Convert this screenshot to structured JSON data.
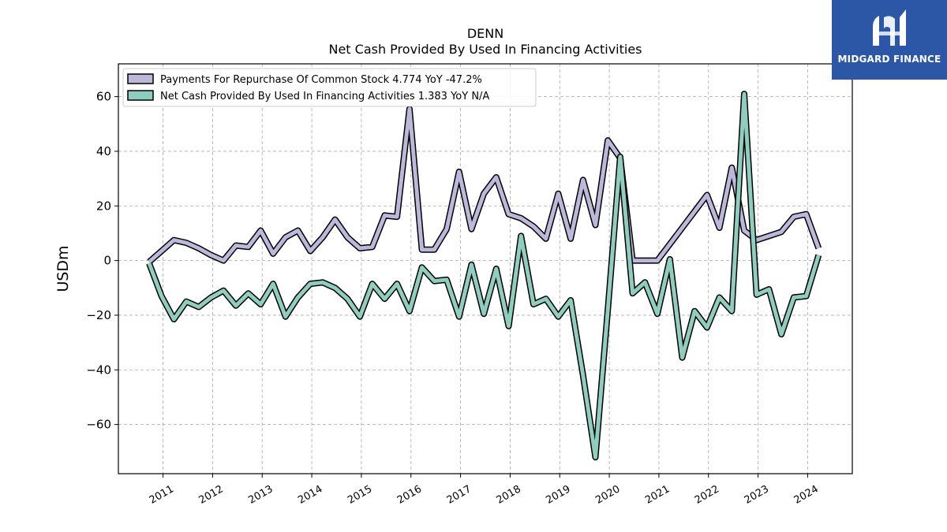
{
  "chart_data": {
    "type": "line",
    "title": "DENN",
    "subtitle": "Net Cash Provided By Used In Financing Activities",
    "ylabel": "USDm",
    "ylim": [
      -78,
      72
    ],
    "yticks": [
      -60,
      -40,
      -20,
      0,
      20,
      40,
      60
    ],
    "xlim": [
      2010.1,
      2024.9
    ],
    "xticks": [
      2011,
      2012,
      2013,
      2014,
      2015,
      2016,
      2017,
      2018,
      2019,
      2020,
      2021,
      2022,
      2023,
      2024
    ],
    "grid": true,
    "legend_position": "top-left",
    "series": [
      {
        "name": "Payments For Repurchase Of Common Stock  4.774 YoY -47.2%",
        "color": "#bcb8dc",
        "x": [
          2010.72,
          2010.97,
          2011.22,
          2011.47,
          2011.72,
          2011.97,
          2012.22,
          2012.47,
          2012.72,
          2012.97,
          2013.22,
          2013.47,
          2013.72,
          2013.97,
          2014.22,
          2014.47,
          2014.72,
          2014.97,
          2015.22,
          2015.47,
          2015.72,
          2015.97,
          2016.22,
          2016.47,
          2016.72,
          2016.97,
          2017.22,
          2017.47,
          2017.72,
          2017.97,
          2018.22,
          2018.47,
          2018.72,
          2018.97,
          2019.22,
          2019.47,
          2019.72,
          2019.97,
          2020.22,
          2020.47,
          2020.72,
          2020.97,
          2021.22,
          2021.47,
          2021.72,
          2021.97,
          2022.22,
          2022.47,
          2022.72,
          2022.97,
          2023.22,
          2023.47,
          2023.72,
          2023.97,
          2024.22
        ],
        "values": [
          -0.5,
          3.5,
          7.5,
          6.5,
          4.5,
          2,
          0,
          5.5,
          5,
          11,
          2.5,
          8.5,
          11,
          3.5,
          8.5,
          15,
          8.5,
          4.5,
          5,
          16.5,
          16,
          55.5,
          4,
          4,
          11.5,
          32.5,
          11.5,
          24.5,
          30.5,
          17,
          15.5,
          12.5,
          8,
          24.5,
          8,
          29.5,
          13,
          44,
          37.5,
          0,
          0,
          0,
          6,
          12,
          18,
          24,
          12,
          34,
          11,
          7.5,
          9,
          10.5,
          16,
          17,
          4.5
        ]
      },
      {
        "name": "Net Cash Provided By Used In Financing Activities  1.383 YoY N/A",
        "color": "#8fcdbf",
        "x": [
          2010.72,
          2010.97,
          2011.22,
          2011.47,
          2011.72,
          2011.97,
          2012.22,
          2012.47,
          2012.72,
          2012.97,
          2013.22,
          2013.47,
          2013.72,
          2013.97,
          2014.22,
          2014.47,
          2014.72,
          2014.97,
          2015.22,
          2015.47,
          2015.72,
          2015.97,
          2016.22,
          2016.47,
          2016.72,
          2016.97,
          2017.22,
          2017.47,
          2017.72,
          2017.97,
          2018.22,
          2018.47,
          2018.72,
          2018.97,
          2019.22,
          2019.47,
          2019.72,
          2019.97,
          2020.22,
          2020.47,
          2020.72,
          2020.97,
          2021.22,
          2021.47,
          2021.72,
          2021.97,
          2022.22,
          2022.47,
          2022.72,
          2022.97,
          2023.22,
          2023.47,
          2023.72,
          2023.97,
          2024.22
        ],
        "values": [
          -1,
          -13,
          -21.5,
          -15,
          -17,
          -13.5,
          -11,
          -16.5,
          -12,
          -16,
          -8.5,
          -20.5,
          -13.5,
          -8.5,
          -8,
          -10,
          -14,
          -20.5,
          -8.5,
          -14,
          -8.5,
          -18.5,
          -2.5,
          -7.5,
          -7,
          -20.5,
          -1.5,
          -19.5,
          -3,
          -24,
          9,
          -16,
          -14,
          -20.5,
          -14.5,
          -42,
          -72,
          -18,
          38,
          -12,
          -8,
          -19.5,
          0.5,
          -35.5,
          -18.5,
          -24.5,
          -13.5,
          -18.5,
          61,
          -12.5,
          -10.5,
          -27,
          -13.5,
          -13,
          2
        ]
      }
    ]
  },
  "logo": {
    "text": "MIDGARD FINANCE"
  }
}
